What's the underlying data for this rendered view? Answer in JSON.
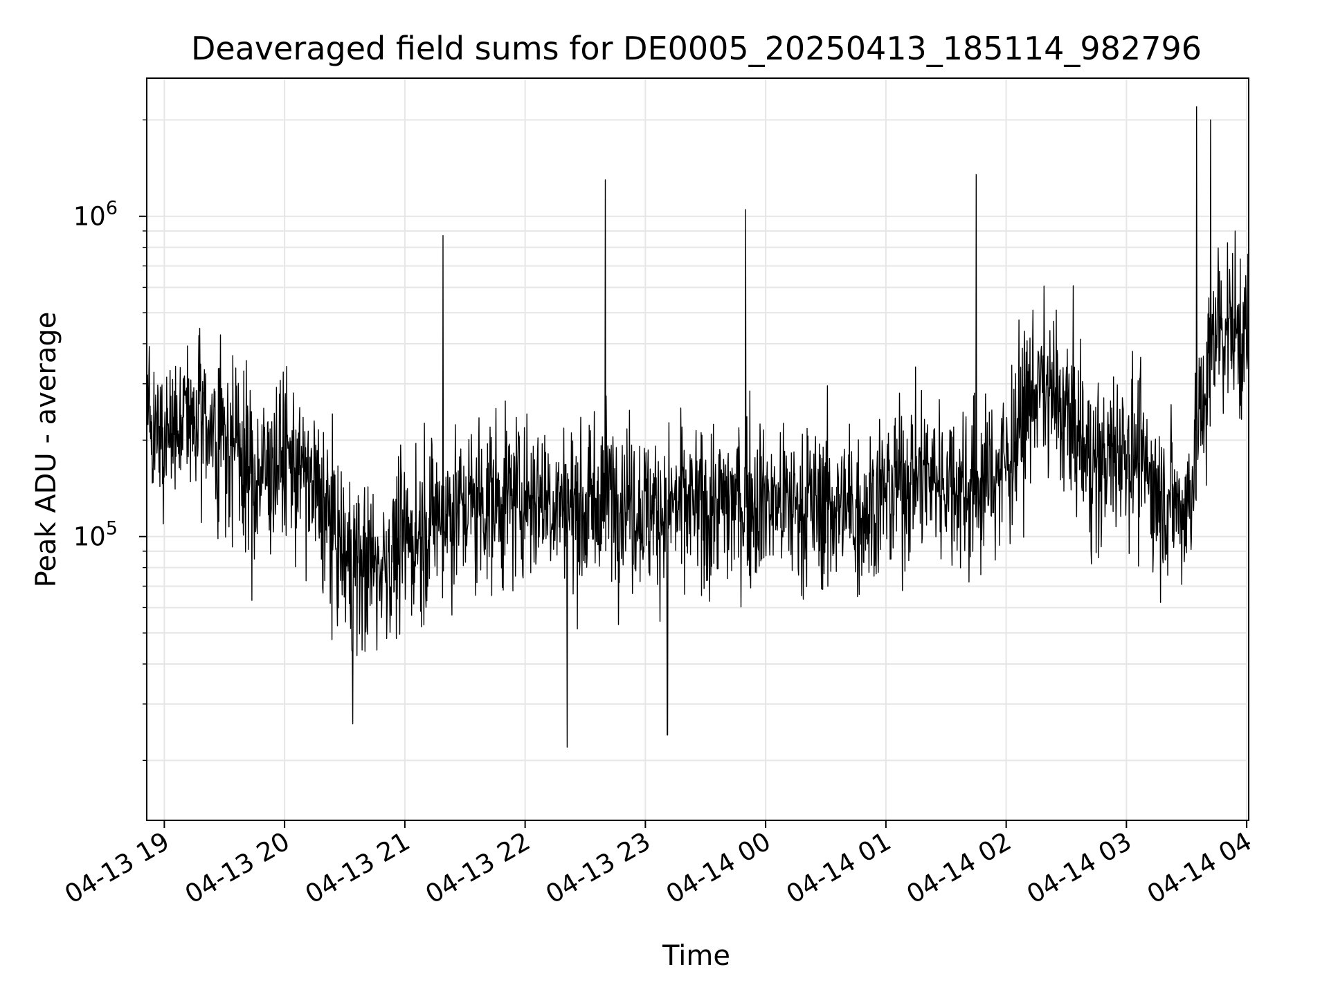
{
  "chart_data": {
    "type": "line",
    "title": "Deaveraged field sums for DE0005_20250413_185114_982796",
    "xlabel": "Time",
    "ylabel": "Peak ADU - average",
    "yscale": "log",
    "ylim": [
      13000,
      2700000
    ],
    "xlim": [
      "2025-04-13 18:51:14",
      "2025-04-14 04:01:00"
    ],
    "grid": true,
    "x_ticks": [
      "04-13 19",
      "04-13 20",
      "04-13 21",
      "04-13 22",
      "04-13 23",
      "04-14 00",
      "04-14 01",
      "04-14 02",
      "04-14 03",
      "04-14 04"
    ],
    "y_ticks": [
      {
        "base": "10",
        "exp": "5",
        "value": 100000
      },
      {
        "base": "10",
        "exp": "6",
        "value": 1000000
      }
    ],
    "line_color": "#000000",
    "grid_color": "#e6e6e6",
    "series": [
      {
        "x": [
          "2025-04-13 18:51",
          "2025-04-13 19:00",
          "2025-04-13 19:15",
          "2025-04-13 19:30",
          "2025-04-13 19:45",
          "2025-04-13 20:00",
          "2025-04-13 20:15",
          "2025-04-13 20:30",
          "2025-04-13 20:45",
          "2025-04-13 21:00",
          "2025-04-13 21:15",
          "2025-04-13 21:30",
          "2025-04-13 21:45",
          "2025-04-13 22:00",
          "2025-04-13 22:15",
          "2025-04-13 22:30",
          "2025-04-13 22:45",
          "2025-04-13 23:00",
          "2025-04-13 23:15",
          "2025-04-13 23:30",
          "2025-04-13 23:45",
          "2025-04-14 00:00",
          "2025-04-14 00:15",
          "2025-04-14 00:30",
          "2025-04-14 00:45",
          "2025-04-14 01:00",
          "2025-04-14 01:15",
          "2025-04-14 01:30",
          "2025-04-14 01:45",
          "2025-04-14 02:00",
          "2025-04-14 02:15",
          "2025-04-14 02:30",
          "2025-04-14 02:45",
          "2025-04-14 03:00",
          "2025-04-14 03:15",
          "2025-04-14 03:30",
          "2025-04-14 03:45",
          "2025-04-14 04:00"
        ],
        "y": [
          220000,
          200000,
          240000,
          210000,
          150000,
          180000,
          140000,
          85000,
          80000,
          95000,
          115000,
          125000,
          130000,
          135000,
          130000,
          120000,
          140000,
          120000,
          125000,
          120000,
          130000,
          130000,
          125000,
          125000,
          120000,
          135000,
          160000,
          150000,
          140000,
          170000,
          300000,
          240000,
          160000,
          200000,
          140000,
          120000,
          480000,
          420000
        ]
      }
    ],
    "spikes": [
      {
        "x": "2025-04-13 21:19",
        "y": 870000
      },
      {
        "x": "2025-04-13 22:40",
        "y": 1300000
      },
      {
        "x": "2025-04-13 23:50",
        "y": 1050000
      },
      {
        "x": "2025-04-14 01:45",
        "y": 1350000
      },
      {
        "x": "2025-04-14 03:35",
        "y": 2200000
      },
      {
        "x": "2025-04-14 03:42",
        "y": 2000000
      },
      {
        "x": "2025-04-13 22:21",
        "y": 22000
      },
      {
        "x": "2025-04-13 23:11",
        "y": 24000
      },
      {
        "x": "2025-04-13 20:34",
        "y": 26000
      }
    ]
  }
}
